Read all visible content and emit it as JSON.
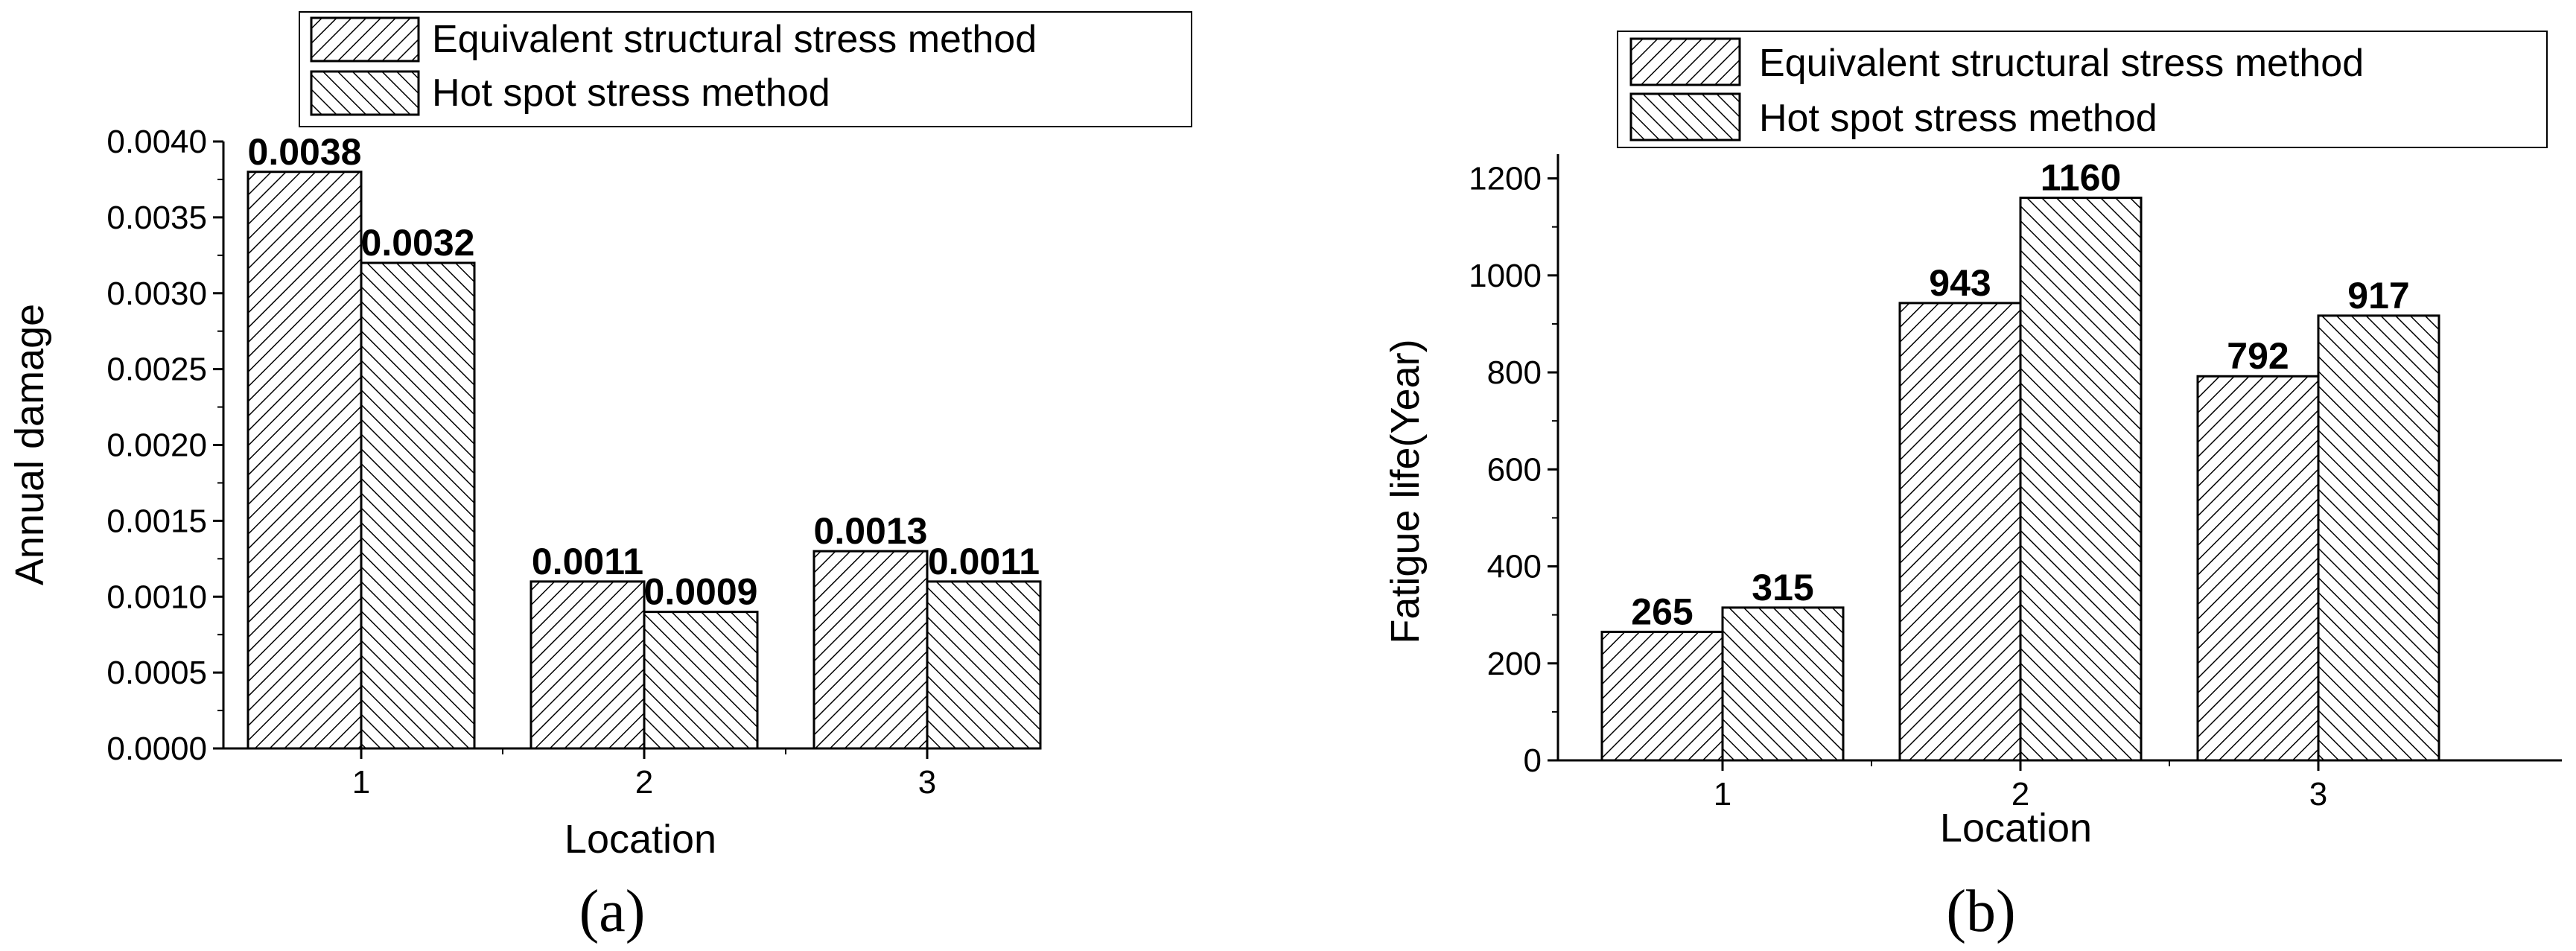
{
  "chart_data": [
    {
      "type": "bar",
      "panel_label": "(a)",
      "categories": [
        "1",
        "2",
        "3"
      ],
      "series": [
        {
          "name": "Equivalent structural stress method",
          "values": [
            0.0038,
            0.0011,
            0.0013
          ],
          "labels": [
            "0.0038",
            "0.0011",
            "0.0013"
          ],
          "hatch": "diagonal-up"
        },
        {
          "name": "Hot spot stress method",
          "values": [
            0.0032,
            0.0009,
            0.0011
          ],
          "labels": [
            "0.0032",
            "0.0009",
            "0.0011"
          ],
          "hatch": "diagonal-down"
        }
      ],
      "xlabel": "Location",
      "ylabel": "Annual damage",
      "ylim": [
        0,
        0.004
      ],
      "yticks": [
        0,
        0.0005,
        0.001,
        0.0015,
        0.002,
        0.0025,
        0.003,
        0.0035,
        0.004
      ],
      "ytick_labels": [
        "0.0000",
        "0.0005",
        "0.0010",
        "0.0015",
        "0.0020",
        "0.0025",
        "0.0030",
        "0.0035",
        "0.0040"
      ],
      "grid": false,
      "legend_position": "top"
    },
    {
      "type": "bar",
      "panel_label": "(b)",
      "categories": [
        "1",
        "2",
        "3"
      ],
      "series": [
        {
          "name": "Equivalent structural stress method",
          "values": [
            265,
            943,
            792
          ],
          "labels": [
            "265",
            "943",
            "792"
          ],
          "hatch": "diagonal-up"
        },
        {
          "name": "Hot spot stress method",
          "values": [
            315,
            1160,
            917
          ],
          "labels": [
            "315",
            "1160",
            "917"
          ],
          "hatch": "diagonal-down"
        }
      ],
      "xlabel": "Location",
      "ylabel": "Fatigue life(Year)",
      "ylim": [
        0,
        1250
      ],
      "yticks": [
        0,
        200,
        400,
        600,
        800,
        1000,
        1200
      ],
      "ytick_labels": [
        "0",
        "200",
        "400",
        "600",
        "800",
        "1000",
        "1200"
      ],
      "grid": false,
      "legend_position": "top-right"
    }
  ],
  "colors": {
    "bar_fill": "#ffffff",
    "hatch": "#000000",
    "axis": "#000000"
  }
}
